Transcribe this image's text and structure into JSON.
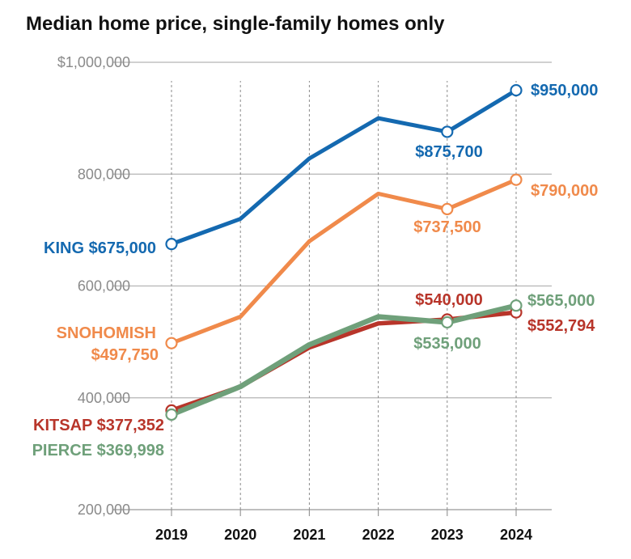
{
  "chart_data": {
    "type": "line",
    "title": "Median home price, single-family homes only",
    "xlabel": "",
    "ylabel": "",
    "x": [
      2019,
      2020,
      2021,
      2022,
      2023,
      2024
    ],
    "x_tick_labels": [
      "2019",
      "2020",
      "2021",
      "2022",
      "2023",
      "2024"
    ],
    "ylim": [
      200000,
      1000000
    ],
    "y_ticks": [
      200000,
      400000,
      600000,
      800000,
      1000000
    ],
    "y_tick_labels": [
      "200,000",
      "400,000",
      "600,000",
      "800,000",
      "$1,000,000"
    ],
    "grid": true,
    "colors": {
      "King": "#1469b0",
      "Snohomish": "#f08a4b",
      "Kitsap": "#b8352a",
      "Pierce": "#6fa07a"
    },
    "series": [
      {
        "name": "KING",
        "values": [
          675000,
          720000,
          828000,
          900000,
          875700,
          950000
        ]
      },
      {
        "name": "SNOHOMISH",
        "values": [
          497750,
          545000,
          680000,
          765000,
          737500,
          790000
        ]
      },
      {
        "name": "KITSAP",
        "values": [
          377352,
          420000,
          490000,
          533000,
          540000,
          552794
        ]
      },
      {
        "name": "PIERCE",
        "values": [
          369998,
          420000,
          495000,
          545000,
          535000,
          565000
        ]
      }
    ],
    "annotations": {
      "king_start": "KING $675,000",
      "king_2023": "$875,700",
      "king_end": "$950,000",
      "snohomish_start_name": "SNOHOMISH",
      "snohomish_start_value": "$497,750",
      "snohomish_2023": "$737,500",
      "snohomish_end": "$790,000",
      "kitsap_start": "KITSAP $377,352",
      "kitsap_2023": "$540,000",
      "kitsap_end": "$552,794",
      "pierce_start": "PIERCE $369,998",
      "pierce_2023": "$535,000",
      "pierce_end": "$565,000"
    }
  }
}
